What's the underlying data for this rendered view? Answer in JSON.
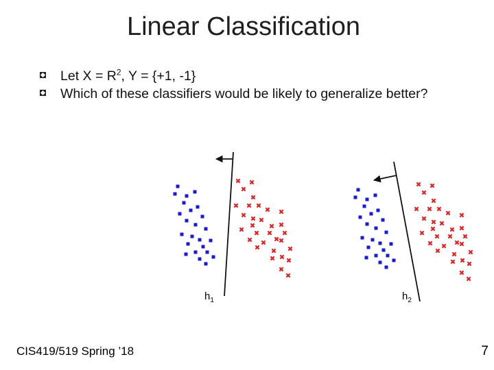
{
  "title": "Linear Classification",
  "bullets": [
    {
      "prefix": "Let X =  R",
      "sup": "2",
      "suffix": ", Y = {+1, -1}"
    },
    {
      "text": "Which of these classifiers would be likely to generalize better?"
    }
  ],
  "classifiers": [
    {
      "label": "h",
      "subscript": "1"
    },
    {
      "label": "h",
      "subscript": "2"
    }
  ],
  "footer": "CIS419/519 Spring ’18",
  "page_number": "7",
  "colors": {
    "negative_class": "#1a1ad6",
    "positive_class": "#e02020",
    "line": "#111111"
  },
  "icons": {
    "negative_marker": "square",
    "positive_marker": "x-cross",
    "normal_direction": "arrow-left"
  }
}
